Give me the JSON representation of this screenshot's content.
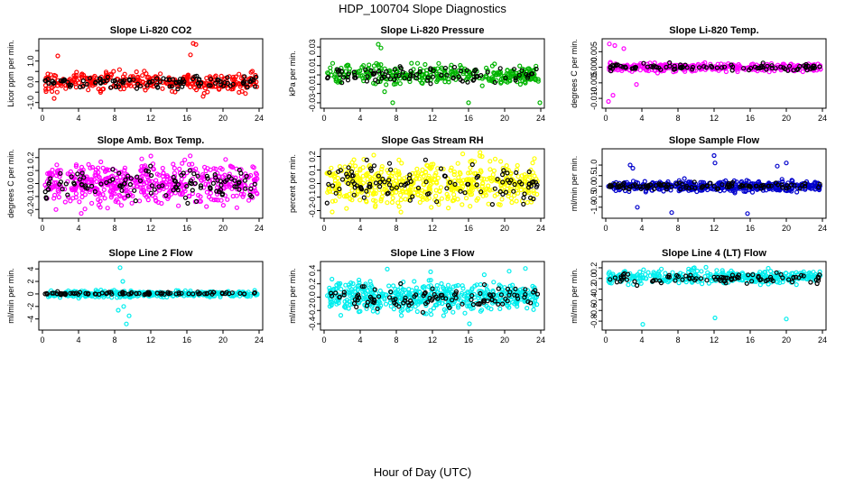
{
  "title": "HDP_100704  Slope Diagnostics",
  "xlabel_global": "Hour of Day (UTC)",
  "chart_data": [
    {
      "type": "scatter",
      "title": "Slope Li-820 CO2",
      "ylabel": "Licor ppm per min.",
      "xlim": [
        0,
        24
      ],
      "ylim": [
        -1.1,
        1.9
      ],
      "xticks": [
        "0",
        "4",
        "8",
        "12",
        "16",
        "20",
        "24"
      ],
      "yticks": [
        "-1.0",
        "0.0",
        "1.0"
      ],
      "ytick_values": [
        -1.0,
        0.0,
        1.0
      ],
      "extra_ytick_values": [
        -0.5,
        0.5,
        1.5
      ],
      "color": "#ff0000",
      "series": [
        {
          "name": "colored",
          "n": 320,
          "center": 0.0,
          "spread": 0.22
        },
        {
          "name": "black",
          "n": 110,
          "center": -0.02,
          "spread": 0.15
        }
      ],
      "outliers": [
        {
          "x": 16.7,
          "y": 1.85
        },
        {
          "x": 17.0,
          "y": 1.8
        },
        {
          "x": 16.4,
          "y": 1.3
        },
        {
          "x": 1.7,
          "y": 1.25
        },
        {
          "x": 17.8,
          "y": -0.7
        },
        {
          "x": 1.3,
          "y": -0.8
        }
      ]
    },
    {
      "type": "scatter",
      "title": "Slope Li-820 Pressure",
      "ylabel": "kPa per min.",
      "xlim": [
        0,
        24
      ],
      "ylim": [
        -0.032,
        0.035
      ],
      "xticks": [
        "0",
        "4",
        "8",
        "12",
        "16",
        "20",
        "24"
      ],
      "yticks": [
        "-0.03",
        "-0.01",
        "0.01",
        "0.03"
      ],
      "ytick_values": [
        -0.03,
        -0.01,
        0.01,
        0.03
      ],
      "extra_ytick_values": [
        -0.02,
        0.0,
        0.02
      ],
      "color": "#00b400",
      "series": [
        {
          "name": "colored",
          "n": 320,
          "center": 0.0,
          "spread": 0.005
        },
        {
          "name": "black",
          "n": 90,
          "center": 0.0,
          "spread": 0.004
        }
      ],
      "outliers": [
        {
          "x": 6.0,
          "y": 0.033
        },
        {
          "x": 6.3,
          "y": 0.029
        },
        {
          "x": 7.6,
          "y": -0.03
        },
        {
          "x": 16.0,
          "y": -0.03
        },
        {
          "x": 23.9,
          "y": -0.03
        },
        {
          "x": 6.7,
          "y": -0.018
        }
      ]
    },
    {
      "type": "scatter",
      "title": "Slope Li-820 Temp.",
      "ylabel": "degrees C per min.",
      "xlim": [
        0,
        24
      ],
      "ylim": [
        -0.012,
        0.008
      ],
      "xticks": [
        "0",
        "4",
        "8",
        "12",
        "16",
        "20",
        "24"
      ],
      "yticks": [
        "-0.010",
        "-0.005",
        "0.000",
        "0.005"
      ],
      "ytick_values": [
        -0.01,
        -0.005,
        0.0,
        0.005
      ],
      "extra_ytick_values": [],
      "color": "#ff00ff",
      "series": [
        {
          "name": "colored",
          "n": 320,
          "center": 0.0,
          "spread": 0.0007
        },
        {
          "name": "black",
          "n": 90,
          "center": 0.0,
          "spread": 0.0005
        }
      ],
      "outliers": [
        {
          "x": 0.4,
          "y": 0.0075
        },
        {
          "x": 1.0,
          "y": 0.007
        },
        {
          "x": 2.0,
          "y": 0.006
        },
        {
          "x": 0.3,
          "y": -0.011
        },
        {
          "x": 0.8,
          "y": -0.009
        },
        {
          "x": 3.4,
          "y": -0.0055
        }
      ]
    },
    {
      "type": "scatter",
      "title": "Slope Amb. Box Temp.",
      "ylabel": "degrees C per min.",
      "xlim": [
        0,
        24
      ],
      "ylim": [
        -0.24,
        0.24
      ],
      "xticks": [
        "0",
        "4",
        "8",
        "12",
        "16",
        "20",
        "24"
      ],
      "yticks": [
        "-0.2",
        "-0.1",
        "0.0",
        "0.1",
        "0.2"
      ],
      "ytick_values": [
        -0.2,
        -0.1,
        0.0,
        0.1,
        0.2
      ],
      "extra_ytick_values": [],
      "color": "#ff00ff",
      "series": [
        {
          "name": "colored",
          "n": 520,
          "center": 0.0,
          "spread": 0.075
        },
        {
          "name": "black",
          "n": 120,
          "center": 0.0,
          "spread": 0.06
        }
      ],
      "outliers": [
        {
          "x": 4.3,
          "y": -0.23
        },
        {
          "x": 1.5,
          "y": -0.2
        },
        {
          "x": 11.0,
          "y": 0.19
        }
      ]
    },
    {
      "type": "scatter",
      "title": "Slope Gas Stream RH",
      "ylabel": "percent per min.",
      "xlim": [
        0,
        24
      ],
      "ylim": [
        -0.23,
        0.23
      ],
      "xticks": [
        "0",
        "4",
        "8",
        "12",
        "16",
        "20",
        "24"
      ],
      "yticks": [
        "-0.2",
        "-0.1",
        "0.0",
        "0.1",
        "0.2"
      ],
      "ytick_values": [
        -0.2,
        -0.1,
        0.0,
        0.1,
        0.2
      ],
      "extra_ytick_values": [],
      "color": "#ffff00",
      "series": [
        {
          "name": "colored",
          "n": 520,
          "center": 0.0,
          "spread": 0.08
        },
        {
          "name": "black",
          "n": 110,
          "center": 0.0,
          "spread": 0.07
        }
      ],
      "outliers": [
        {
          "x": 5.5,
          "y": 0.21
        },
        {
          "x": 0.9,
          "y": -0.21
        },
        {
          "x": 17.5,
          "y": 0.2
        }
      ]
    },
    {
      "type": "scatter",
      "title": "Slope Sample Flow",
      "ylabel": "ml/min per min.",
      "xlim": [
        0,
        24
      ],
      "ylim": [
        -1.35,
        1.6
      ],
      "xticks": [
        "0",
        "4",
        "8",
        "12",
        "16",
        "20",
        "24"
      ],
      "yticks": [
        "-1.0",
        "-0.5",
        "0.0",
        "0.5",
        "1.0"
      ],
      "ytick_values": [
        -1.0,
        -0.5,
        0.0,
        0.5,
        1.0
      ],
      "extra_ytick_values": [],
      "color": "#0000cc",
      "series": [
        {
          "name": "colored",
          "n": 420,
          "center": 0.0,
          "spread": 0.12
        },
        {
          "name": "black",
          "n": 100,
          "center": 0.0,
          "spread": 0.08
        }
      ],
      "outliers": [
        {
          "x": 12.0,
          "y": 1.45
        },
        {
          "x": 12.1,
          "y": 1.1
        },
        {
          "x": 20.0,
          "y": 1.1
        },
        {
          "x": 15.7,
          "y": -1.3
        },
        {
          "x": 3.5,
          "y": -1.0
        },
        {
          "x": 7.3,
          "y": -1.25
        },
        {
          "x": 2.7,
          "y": 1.0
        },
        {
          "x": 19.0,
          "y": 0.95
        },
        {
          "x": 3.0,
          "y": 0.85
        }
      ]
    },
    {
      "type": "scatter",
      "title": "Slope Line 2 Flow",
      "ylabel": "ml/min per min.",
      "xlim": [
        0,
        24
      ],
      "ylim": [
        -5.2,
        4.6
      ],
      "xticks": [
        "0",
        "4",
        "8",
        "12",
        "16",
        "20",
        "24"
      ],
      "yticks": [
        "-4",
        "-2",
        "0",
        "2",
        "4"
      ],
      "ytick_values": [
        -4,
        -2,
        0,
        2,
        4
      ],
      "extra_ytick_values": [],
      "color": "#00eeee",
      "series": [
        {
          "name": "colored",
          "n": 360,
          "center": 0.0,
          "spread": 0.25
        },
        {
          "name": "black",
          "n": 90,
          "center": 0.1,
          "spread": 0.1
        }
      ],
      "outliers": [
        {
          "x": 8.6,
          "y": 4.2
        },
        {
          "x": 9.3,
          "y": -4.8
        },
        {
          "x": 8.4,
          "y": -2.6
        },
        {
          "x": 9.6,
          "y": -3.5
        },
        {
          "x": 9.0,
          "y": -2.0
        },
        {
          "x": 8.9,
          "y": 2.0
        }
      ]
    },
    {
      "type": "scatter",
      "title": "Slope Line 3 Flow",
      "ylabel": "ml/min per min.",
      "xlim": [
        0,
        24
      ],
      "ylim": [
        -0.44,
        0.48
      ],
      "xticks": [
        "0",
        "4",
        "8",
        "12",
        "16",
        "20",
        "24"
      ],
      "yticks": [
        "-0.4",
        "-0.2",
        "0.0",
        "0.2",
        "0.4"
      ],
      "ytick_values": [
        -0.4,
        -0.2,
        0.0,
        0.2,
        0.4
      ],
      "extra_ytick_values": [],
      "color": "#00eeee",
      "series": [
        {
          "name": "colored",
          "n": 520,
          "center": 0.0,
          "spread": 0.11
        },
        {
          "name": "black",
          "n": 110,
          "center": 0.0,
          "spread": 0.1
        }
      ],
      "outliers": [
        {
          "x": 22.3,
          "y": 0.43
        },
        {
          "x": 7.0,
          "y": 0.42
        },
        {
          "x": 16.1,
          "y": -0.4
        },
        {
          "x": 11.8,
          "y": 0.38
        },
        {
          "x": 20.5,
          "y": 0.39
        }
      ]
    },
    {
      "type": "scatter",
      "title": "Slope Line 4 (LT) Flow",
      "ylabel": "ml/min per min.",
      "xlim": [
        0,
        24
      ],
      "ylim": [
        -0.9,
        0.25
      ],
      "xticks": [
        "0",
        "4",
        "8",
        "12",
        "16",
        "20",
        "24"
      ],
      "yticks": [
        "-0.8",
        "-0.6",
        "-0.4",
        "-0.2",
        "0.0",
        "0.2"
      ],
      "ytick_values": [
        -0.8,
        -0.6,
        -0.4,
        -0.2,
        0.0,
        0.2
      ],
      "extra_ytick_values": [],
      "color": "#00eeee",
      "series": [
        {
          "name": "colored",
          "n": 360,
          "center": 0.03,
          "spread": 0.06
        },
        {
          "name": "black",
          "n": 90,
          "center": 0.0,
          "spread": 0.05
        }
      ],
      "outliers": [
        {
          "x": 4.1,
          "y": -0.86
        },
        {
          "x": 12.1,
          "y": -0.74
        },
        {
          "x": 20.0,
          "y": -0.76
        },
        {
          "x": 11.1,
          "y": 0.21
        },
        {
          "x": 18.0,
          "y": 0.19
        }
      ]
    }
  ]
}
